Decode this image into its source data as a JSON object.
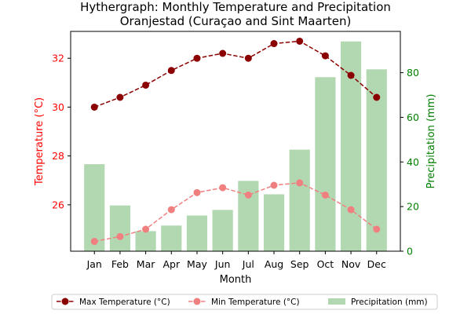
{
  "chart_data": {
    "type": "bar+line",
    "title": "Hythergraph: Monthly Temperature and Precipitation",
    "subtitle": "Oranjestad (Curaçao and Sint Maarten)",
    "xlabel": "Month",
    "ylabel_left": "Temperature (°C)",
    "ylabel_right": "Precipitation (mm)",
    "categories": [
      "Jan",
      "Feb",
      "Mar",
      "Apr",
      "May",
      "Jun",
      "Jul",
      "Aug",
      "Sep",
      "Oct",
      "Nov",
      "Dec"
    ],
    "left_ylim": [
      24.1,
      33.1
    ],
    "left_yticks": [
      26,
      28,
      30,
      32
    ],
    "right_ylim": [
      0,
      98.5
    ],
    "right_yticks": [
      0,
      20,
      40,
      60,
      80
    ],
    "series": [
      {
        "name": "Max Temperature (°C)",
        "kind": "line",
        "axis": "left",
        "color": "#8b0000",
        "style": "dashed-marker",
        "values": [
          30.0,
          30.4,
          30.9,
          31.5,
          32.0,
          32.2,
          32.0,
          32.6,
          32.7,
          32.1,
          31.3,
          30.4
        ]
      },
      {
        "name": "Min Temperature (°C)",
        "kind": "line",
        "axis": "left",
        "color": "#f08080",
        "style": "dashed-marker",
        "values": [
          24.5,
          24.7,
          25.0,
          25.8,
          26.5,
          26.7,
          26.4,
          26.8,
          26.9,
          26.4,
          25.8,
          25.0
        ]
      },
      {
        "name": "Precipitation (mm)",
        "kind": "bar",
        "axis": "right",
        "color": "#b2d8b2",
        "values": [
          39,
          20.5,
          9,
          11.5,
          16,
          18.5,
          31.5,
          25.5,
          45.5,
          78,
          94,
          81.5
        ]
      }
    ],
    "left_axis_color": "#ff0000",
    "right_axis_color": "#008000",
    "grid": false,
    "legend_position": "bottom-center"
  }
}
